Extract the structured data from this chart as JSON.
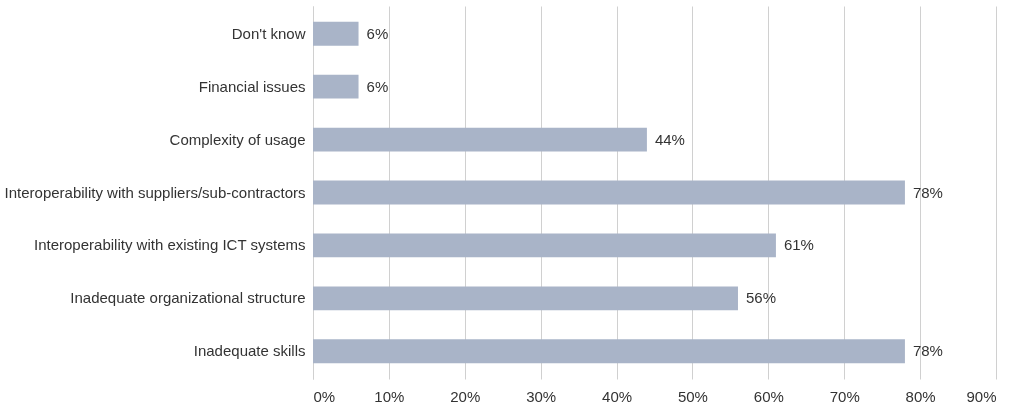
{
  "chart_data": {
    "type": "bar",
    "orientation": "horizontal",
    "categories": [
      "Don't know",
      "Financial issues",
      "Complexity of usage",
      "Interoperability with suppliers/sub-contractors",
      "Interoperability with existing ICT systems",
      "Inadequate organizational structure",
      "Inadequate skills"
    ],
    "values": [
      6,
      6,
      44,
      78,
      61,
      56,
      78
    ],
    "value_labels": [
      "6%",
      "6%",
      "44%",
      "78%",
      "61%",
      "56%",
      "78%"
    ],
    "color": "#a9b4c8",
    "xlim": [
      0,
      90
    ],
    "xticks": [
      {
        "value": 0,
        "label": "0%"
      },
      {
        "value": 10,
        "label": "10%"
      },
      {
        "value": 20,
        "label": "20%"
      },
      {
        "value": 30,
        "label": "30%"
      },
      {
        "value": 40,
        "label": "40%"
      },
      {
        "value": 50,
        "label": "50%"
      },
      {
        "value": 60,
        "label": "60%"
      },
      {
        "value": 70,
        "label": "70%"
      },
      {
        "value": 80,
        "label": "80%"
      },
      {
        "value": 90,
        "label": "90%"
      }
    ],
    "grid": "x"
  }
}
